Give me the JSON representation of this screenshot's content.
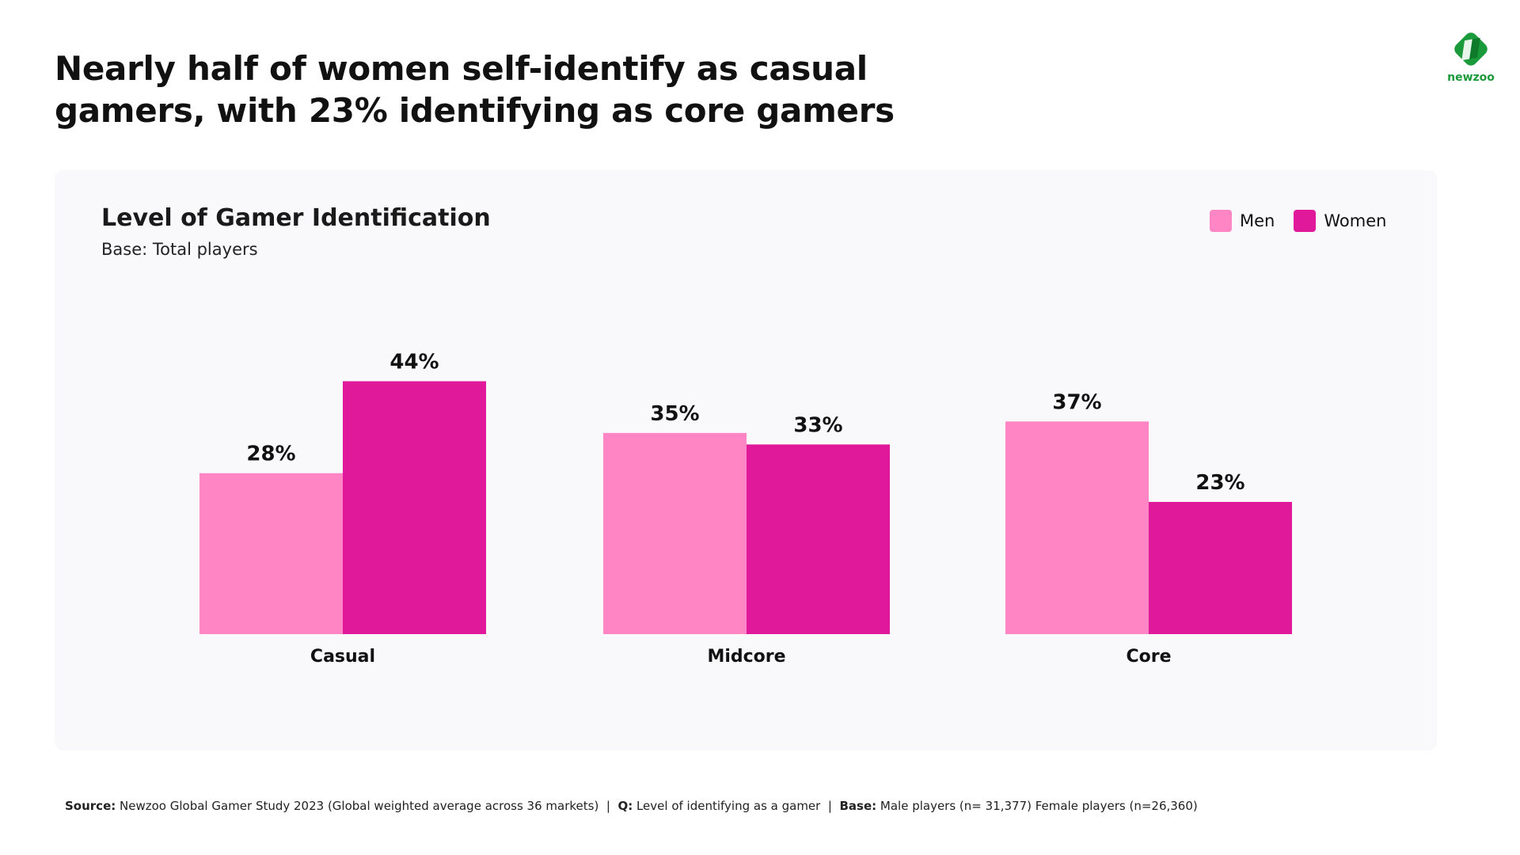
{
  "title": "Nearly half of women self-identify as casual gamers, with 23% identifying as core gamers",
  "logo": {
    "text": "newzoo",
    "color": "#1a9a3a"
  },
  "chart_data": {
    "type": "bar",
    "title": "Level of Gamer Identification",
    "subtitle": "Base: Total players",
    "categories": [
      "Casual",
      "Midcore",
      "Core"
    ],
    "series": [
      {
        "name": "Men",
        "values": [
          28,
          35,
          37
        ],
        "labels": [
          "28%",
          "35%",
          "37%"
        ],
        "color": "#ff85c4"
      },
      {
        "name": "Women",
        "values": [
          44,
          33,
          23
        ],
        "labels": [
          "44%",
          "33%",
          "23%"
        ],
        "color": "#e0199a"
      }
    ],
    "unit": "%",
    "ylim": [
      0,
      44
    ],
    "grid": false,
    "legend_position": "top-right"
  },
  "footer": {
    "source_label": "Source:",
    "source_text": " Newzoo Global Gamer Study 2023 (Global weighted average across 36 markets)  |  ",
    "q_label": "Q:",
    "q_text": " Level of identifying as a gamer  |  ",
    "base_label": "Base:",
    "base_text": " Male players (n= 31,377) Female players (n=26,360)"
  }
}
